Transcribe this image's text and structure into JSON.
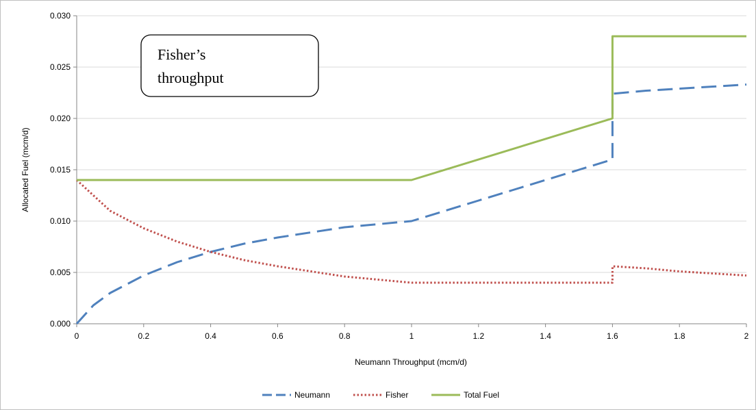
{
  "chart_data": {
    "type": "line",
    "title": "",
    "xlabel": "Neumann Throughput (mcm/d)",
    "ylabel": "Allocated Fuel (mcm/d)",
    "xlim": [
      0,
      2
    ],
    "ylim": [
      0,
      0.03
    ],
    "xticks": [
      "0",
      "0.2",
      "0.4",
      "0.6",
      "0.8",
      "1",
      "1.2",
      "1.4",
      "1.6",
      "1.8",
      "2"
    ],
    "yticks": [
      "0.000",
      "0.005",
      "0.010",
      "0.015",
      "0.020",
      "0.025",
      "0.030"
    ],
    "grid": "horizontal",
    "legend": "bottom",
    "annotation": [
      "Fisher’s",
      "throughput"
    ],
    "series": [
      {
        "name": "Neumann",
        "color": "#4f81bd",
        "style": "long-dash",
        "x": [
          0,
          0.05,
          0.1,
          0.2,
          0.3,
          0.4,
          0.5,
          0.6,
          0.7,
          0.8,
          0.9,
          1.0,
          1.1,
          1.2,
          1.3,
          1.4,
          1.5,
          1.6,
          1.6,
          1.7,
          1.8,
          1.9,
          2.0
        ],
        "y": [
          0,
          0.0018,
          0.003,
          0.0047,
          0.006,
          0.007,
          0.0078,
          0.0084,
          0.0089,
          0.0094,
          0.0097,
          0.01,
          0.011,
          0.012,
          0.013,
          0.014,
          0.015,
          0.016,
          0.0224,
          0.0227,
          0.0229,
          0.0231,
          0.0233
        ]
      },
      {
        "name": "Fisher",
        "color": "#c0504d",
        "style": "dotted",
        "x": [
          0,
          0.05,
          0.1,
          0.2,
          0.3,
          0.4,
          0.5,
          0.6,
          0.7,
          0.8,
          0.9,
          1.0,
          1.2,
          1.4,
          1.6,
          1.6,
          1.7,
          1.8,
          1.9,
          2.0
        ],
        "y": [
          0.014,
          0.0125,
          0.011,
          0.0093,
          0.008,
          0.007,
          0.0062,
          0.0056,
          0.0051,
          0.0046,
          0.0043,
          0.004,
          0.004,
          0.004,
          0.004,
          0.0056,
          0.0054,
          0.0051,
          0.0049,
          0.0047
        ]
      },
      {
        "name": "Total Fuel",
        "color": "#9bbb59",
        "style": "solid",
        "x": [
          0,
          1.0,
          1.6,
          1.6,
          2.0
        ],
        "y": [
          0.014,
          0.014,
          0.02,
          0.028,
          0.028
        ]
      }
    ]
  }
}
